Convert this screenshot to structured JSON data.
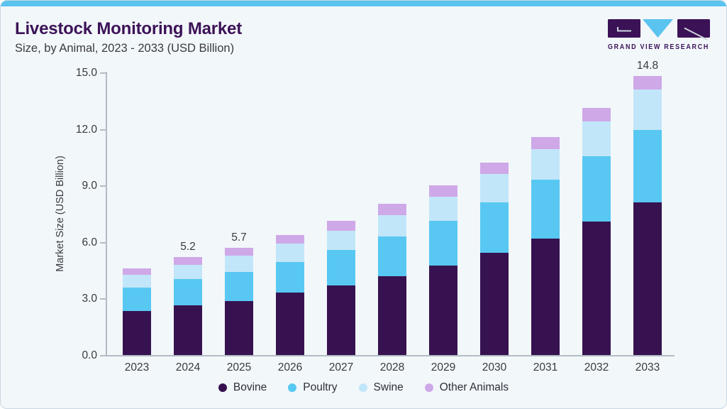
{
  "header": {
    "title": "Livestock Monitoring Market",
    "subtitle": "Size, by Animal, 2023 - 2033 (USD Billion)",
    "logo": {
      "text": "GRAND VIEW RESEARCH"
    }
  },
  "colors": {
    "accent_strip": "#5ac3ef",
    "card_background": "#f2f7fa",
    "card_border": "#c9d7e2",
    "title_text": "#3c1257",
    "body_text": "#3a3a42",
    "axis": "#b3bcc4",
    "bovine": "#371250",
    "poultry": "#58c8f2",
    "swine": "#c2e6f9",
    "other_animals": "#cfa8e8"
  },
  "chart_data": {
    "type": "bar",
    "stacked": true,
    "title": "Livestock Monitoring Market Size, by Animal, 2023 - 2033 (USD Billion)",
    "xlabel": "",
    "ylabel": "Market Size (USD Billion)",
    "ylim": [
      0,
      15
    ],
    "ytick_labels": [
      "0.0",
      "3.0",
      "6.0",
      "9.0",
      "12.0",
      "15.0"
    ],
    "grid": false,
    "categories": [
      "2023",
      "2024",
      "2025",
      "2026",
      "2027",
      "2028",
      "2029",
      "2030",
      "2031",
      "2032",
      "2033"
    ],
    "series": [
      {
        "name": "Bovine",
        "color": "#371250",
        "values": [
          2.33,
          2.62,
          2.88,
          3.3,
          3.69,
          4.2,
          4.75,
          5.41,
          6.19,
          7.1,
          8.09
        ]
      },
      {
        "name": "Poultry",
        "color": "#58c8f2",
        "values": [
          1.25,
          1.43,
          1.53,
          1.64,
          1.88,
          2.08,
          2.38,
          2.68,
          3.11,
          3.46,
          3.87
        ]
      },
      {
        "name": "Swine",
        "color": "#c2e6f9",
        "values": [
          0.68,
          0.73,
          0.85,
          0.96,
          1.03,
          1.15,
          1.28,
          1.51,
          1.62,
          1.83,
          2.12
        ]
      },
      {
        "name": "Other Animals",
        "color": "#cfa8e8",
        "values": [
          0.35,
          0.42,
          0.44,
          0.46,
          0.53,
          0.59,
          0.61,
          0.62,
          0.64,
          0.71,
          0.72
        ]
      }
    ],
    "totals_labeled": [
      {
        "year": "2024",
        "label": "5.2"
      },
      {
        "year": "2025",
        "label": "5.7"
      },
      {
        "year": "2033",
        "label": "14.8"
      }
    ],
    "legend": {
      "position": "bottom",
      "items": [
        "Bovine",
        "Poultry",
        "Swine",
        "Other Animals"
      ]
    }
  }
}
